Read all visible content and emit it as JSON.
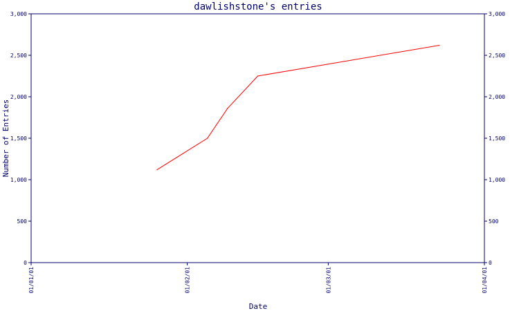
{
  "chart_data": {
    "type": "line",
    "title": "dawlishstone's entries",
    "xlabel": "Date",
    "ylabel": "Number of Entries",
    "ylim": [
      0,
      3000
    ],
    "x_ticks": [
      "01/01/01",
      "01/02/01",
      "01/03/01",
      "01/04/01"
    ],
    "y_ticks": [
      "0",
      "500",
      "1,000",
      "1,500",
      "2,000",
      "2,500",
      "3,000"
    ],
    "y_tick_values": [
      0,
      500,
      1000,
      1500,
      2000,
      2500,
      3000
    ],
    "y_ticks_right": [
      "0",
      "500",
      "1,000",
      "1,500",
      "2,000",
      "2,500",
      "3,000"
    ],
    "grid": false,
    "series": [
      {
        "color": "#ff0000",
        "points": [
          {
            "x": "2001-01-26",
            "y": 1120
          },
          {
            "x": "2001-02-05",
            "y": 1500
          },
          {
            "x": "2001-02-09",
            "y": 1860
          },
          {
            "x": "2001-02-15",
            "y": 2250
          },
          {
            "x": "2001-03-23",
            "y": 2620
          }
        ]
      }
    ],
    "colors": {
      "axis": "#000066",
      "line": "#ff0000"
    }
  }
}
